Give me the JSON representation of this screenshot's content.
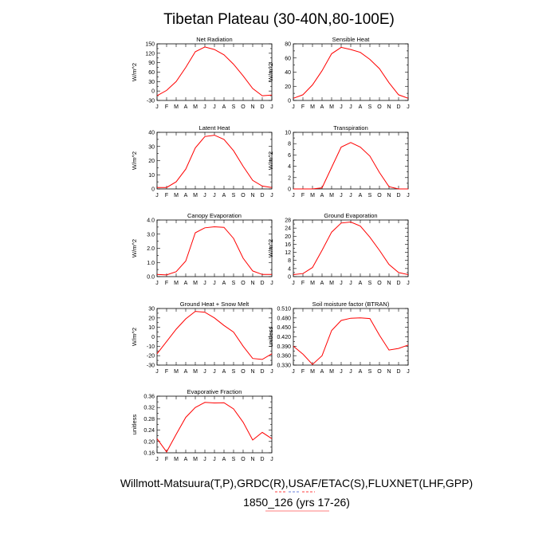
{
  "figure": {
    "title": "Tibetan Plateau (30-40N,80-100E)",
    "footer_line1": "Willmott-Matsuura(T,P),GRDC(R),USAF/ETAC(S),FLUXNET(LHF,GPP)",
    "footer_line2": "1850_126 (yrs 17-26)",
    "line_color": "#ff0000"
  },
  "chart_data": [
    {
      "type": "line",
      "title": "Net Radiation",
      "ylabel": "W/m^2",
      "categories": [
        "J",
        "F",
        "M",
        "A",
        "M",
        "J",
        "J",
        "A",
        "S",
        "O",
        "N",
        "D",
        "J"
      ],
      "values": [
        -15,
        2,
        30,
        75,
        125,
        140,
        132,
        115,
        85,
        48,
        8,
        -15,
        -13
      ],
      "ylim": [
        -30,
        150
      ],
      "yticks": [
        "150",
        "120",
        "90",
        "60",
        "30",
        "0",
        "-30"
      ]
    },
    {
      "type": "line",
      "title": "Sensible Heat",
      "ylabel": "W/m^2",
      "categories": [
        "J",
        "F",
        "M",
        "A",
        "M",
        "J",
        "J",
        "A",
        "S",
        "O",
        "N",
        "D",
        "J"
      ],
      "values": [
        3,
        8,
        22,
        42,
        66,
        75,
        72,
        68,
        58,
        45,
        25,
        8,
        3
      ],
      "ylim": [
        0,
        80
      ],
      "yticks": [
        "80",
        "60",
        "40",
        "20",
        "0"
      ]
    },
    {
      "type": "line",
      "title": "Latent Heat",
      "ylabel": "W/m^2",
      "categories": [
        "J",
        "F",
        "M",
        "A",
        "M",
        "J",
        "J",
        "A",
        "S",
        "O",
        "N",
        "D",
        "J"
      ],
      "values": [
        1,
        1,
        5,
        14,
        29,
        37,
        38,
        35,
        27,
        16,
        6,
        2,
        1
      ],
      "ylim": [
        0,
        40
      ],
      "yticks": [
        "40",
        "30",
        "20",
        "10",
        "0"
      ]
    },
    {
      "type": "line",
      "title": "Transpiration",
      "ylabel": "W/m^2",
      "categories": [
        "J",
        "F",
        "M",
        "A",
        "M",
        "J",
        "J",
        "A",
        "S",
        "O",
        "N",
        "D",
        "J"
      ],
      "values": [
        0,
        0,
        0,
        0.2,
        3.8,
        7.4,
        8.2,
        7.4,
        5.8,
        2.9,
        0.4,
        0,
        0
      ],
      "ylim": [
        0,
        10
      ],
      "yticks": [
        "10",
        "8",
        "6",
        "4",
        "2",
        "0"
      ]
    },
    {
      "type": "line",
      "title": "Canopy Evaporation",
      "ylabel": "W/m^2",
      "categories": [
        "J",
        "F",
        "M",
        "A",
        "M",
        "J",
        "J",
        "A",
        "S",
        "O",
        "N",
        "D",
        "J"
      ],
      "values": [
        0.15,
        0.12,
        0.35,
        1.1,
        3.1,
        3.45,
        3.52,
        3.48,
        2.7,
        1.3,
        0.4,
        0.15,
        0.15
      ],
      "ylim": [
        0,
        4
      ],
      "yticks": [
        "4.0",
        "3.0",
        "2.0",
        "1.0",
        "0.0"
      ]
    },
    {
      "type": "line",
      "title": "Ground Evaporation",
      "ylabel": "W/m^2",
      "categories": [
        "J",
        "F",
        "M",
        "A",
        "M",
        "J",
        "J",
        "A",
        "S",
        "O",
        "N",
        "D",
        "J"
      ],
      "values": [
        1,
        1.5,
        4.5,
        13,
        22,
        26.5,
        27,
        25,
        19.5,
        13,
        6,
        2,
        1
      ],
      "ylim": [
        0,
        28
      ],
      "yticks": [
        "28",
        "24",
        "20",
        "16",
        "12",
        "8",
        "4",
        "0"
      ]
    },
    {
      "type": "line",
      "title": "Ground Heat + Snow Melt",
      "ylabel": "W/m^2",
      "categories": [
        "J",
        "F",
        "M",
        "A",
        "M",
        "J",
        "J",
        "A",
        "S",
        "O",
        "N",
        "D",
        "J"
      ],
      "values": [
        -18,
        -5,
        8,
        19,
        27,
        26,
        20,
        12,
        5,
        -10,
        -23,
        -24,
        -18
      ],
      "ylim": [
        -30,
        30
      ],
      "yticks": [
        "30",
        "20",
        "10",
        "0",
        "-10",
        "-20",
        "-30"
      ]
    },
    {
      "type": "line",
      "title": "Soil moisture factor (BTRAN)",
      "ylabel": "unitless",
      "categories": [
        "J",
        "F",
        "M",
        "A",
        "M",
        "J",
        "J",
        "A",
        "S",
        "O",
        "N",
        "D",
        "J"
      ],
      "values": [
        0.39,
        0.365,
        0.332,
        0.36,
        0.44,
        0.472,
        0.479,
        0.48,
        0.478,
        0.425,
        0.378,
        0.383,
        0.394
      ],
      "ylim": [
        0.33,
        0.51
      ],
      "yticks": [
        "0.510",
        "0.480",
        "0.450",
        "0.420",
        "0.390",
        "0.360",
        "0.330"
      ]
    },
    {
      "type": "line",
      "title": "Evaporative Fraction",
      "ylabel": "unitless",
      "categories": [
        "J",
        "F",
        "M",
        "A",
        "M",
        "J",
        "J",
        "A",
        "S",
        "O",
        "N",
        "D",
        "J"
      ],
      "values": [
        0.21,
        0.163,
        0.225,
        0.285,
        0.32,
        0.338,
        0.336,
        0.337,
        0.315,
        0.268,
        0.205,
        0.232,
        0.21
      ],
      "ylim": [
        0.16,
        0.36
      ],
      "yticks": [
        "0.36",
        "0.32",
        "0.28",
        "0.24",
        "0.20",
        "0.16"
      ]
    }
  ]
}
